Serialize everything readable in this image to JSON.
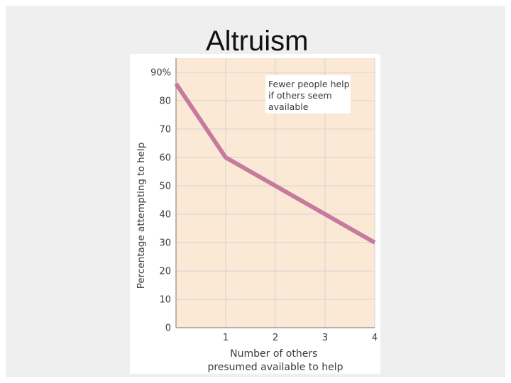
{
  "slide": {
    "title": "Altruism"
  },
  "chart_data": {
    "type": "line",
    "xlabel_lines": [
      "Number of others",
      "presumed available to help"
    ],
    "ylabel": "Percentage attempting to help",
    "x_ticks": [
      "1",
      "2",
      "3",
      "4"
    ],
    "y_ticks": [
      "0",
      "10",
      "20",
      "30",
      "40",
      "50",
      "60",
      "70",
      "80",
      "90%"
    ],
    "xlim": [
      0,
      4
    ],
    "ylim": [
      0,
      95
    ],
    "grid": true,
    "annotation_lines": [
      "Fewer people help",
      "if others seem",
      "available"
    ],
    "series": [
      {
        "x": [
          0,
          1,
          2,
          3,
          4
        ],
        "y": [
          86,
          60,
          50,
          40,
          30
        ]
      }
    ],
    "colors": {
      "line": "#c57a9e",
      "plot_bg": "#fbe9d6",
      "grid": "#d3d3d3"
    }
  }
}
